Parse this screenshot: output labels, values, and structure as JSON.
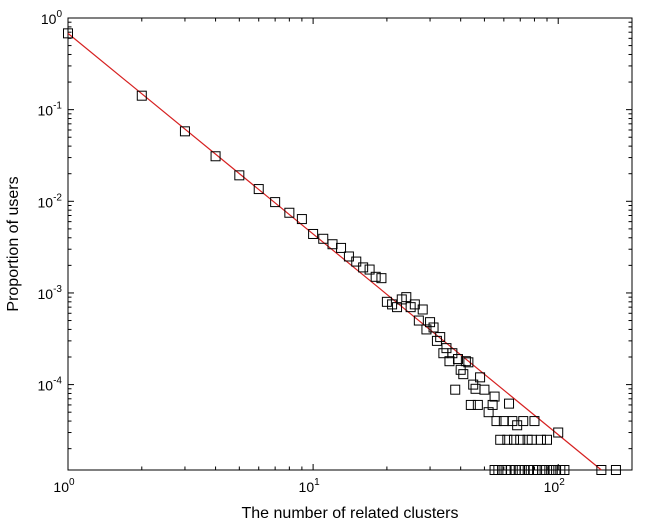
{
  "chart_data": {
    "type": "scatter",
    "xlabel": "The number of related clusters",
    "ylabel": "Proportion of users",
    "xscale": "log",
    "yscale": "log",
    "xlim": [
      1,
      200
    ],
    "ylim": [
      1.17e-05,
      1
    ],
    "grid": false,
    "x_ticks": [
      {
        "value": 1,
        "base": "10",
        "exp": "0"
      },
      {
        "value": 10,
        "base": "10",
        "exp": "1"
      },
      {
        "value": 100,
        "base": "10",
        "exp": "2"
      }
    ],
    "y_ticks": [
      {
        "value": 1,
        "base": "10",
        "exp": "0"
      },
      {
        "value": 0.1,
        "base": "10",
        "exp": "-1"
      },
      {
        "value": 0.01,
        "base": "10",
        "exp": "-2"
      },
      {
        "value": 0.001,
        "base": "10",
        "exp": "-3"
      },
      {
        "value": 0.0001,
        "base": "10",
        "exp": "-4"
      }
    ],
    "series": [
      {
        "marker": "square",
        "color": "#000000",
        "points": [
          [
            1,
            0.68
          ],
          [
            2,
            0.142
          ],
          [
            3,
            0.058
          ],
          [
            4,
            0.031
          ],
          [
            5,
            0.0192
          ],
          [
            6,
            0.0136
          ],
          [
            7,
            0.0098
          ],
          [
            8,
            0.0075
          ],
          [
            9,
            0.0064
          ],
          [
            10,
            0.0044
          ],
          [
            11,
            0.0039
          ],
          [
            12,
            0.0034
          ],
          [
            13,
            0.0031
          ],
          [
            14,
            0.0025
          ],
          [
            15,
            0.0022
          ],
          [
            16,
            0.0019
          ],
          [
            17,
            0.0018
          ],
          [
            18,
            0.0015
          ],
          [
            19,
            0.00145
          ],
          [
            20,
            0.0008
          ],
          [
            21,
            0.00075
          ],
          [
            22,
            0.0007
          ],
          [
            23,
            0.00085
          ],
          [
            24,
            0.0009
          ],
          [
            25,
            0.0007
          ],
          [
            26,
            0.00075
          ],
          [
            27,
            0.0005
          ],
          [
            28,
            0.00066
          ],
          [
            29,
            0.0004
          ],
          [
            30,
            0.00048
          ],
          [
            31,
            0.00042
          ],
          [
            32,
            0.0003
          ],
          [
            33,
            0.00033
          ],
          [
            34,
            0.00022
          ],
          [
            35,
            0.00025
          ],
          [
            36,
            0.00018
          ],
          [
            37,
            0.00022
          ],
          [
            38,
            8.8e-05
          ],
          [
            39,
            0.00019
          ],
          [
            40,
            0.000145
          ],
          [
            41,
            0.00013
          ],
          [
            42,
            0.00018
          ],
          [
            43,
            0.000175
          ],
          [
            44,
            6e-05
          ],
          [
            45,
            0.0001
          ],
          [
            46,
            9e-05
          ],
          [
            47,
            6e-05
          ],
          [
            48,
            0.00012
          ],
          [
            50,
            8.8e-05
          ],
          [
            52,
            5e-05
          ],
          [
            54,
            6e-05
          ],
          [
            55,
            7.4e-05
          ],
          [
            56,
            4e-05
          ],
          [
            58,
            2.5e-05
          ],
          [
            60,
            4e-05
          ],
          [
            62,
            2.5e-05
          ],
          [
            63,
            6.2e-05
          ],
          [
            65,
            4e-05
          ],
          [
            66,
            2.5e-05
          ],
          [
            68,
            3.6e-05
          ],
          [
            70,
            2.5e-05
          ],
          [
            72,
            4e-05
          ],
          [
            75,
            2.5e-05
          ],
          [
            78,
            2.5e-05
          ],
          [
            80,
            4e-05
          ],
          [
            85,
            2.5e-05
          ],
          [
            90,
            2.5e-05
          ],
          [
            100,
            3e-05
          ],
          [
            55,
            1.17e-05
          ],
          [
            57,
            1.17e-05
          ],
          [
            59,
            1.17e-05
          ],
          [
            61,
            1.17e-05
          ],
          [
            64,
            1.17e-05
          ],
          [
            67,
            1.17e-05
          ],
          [
            69,
            1.17e-05
          ],
          [
            71,
            1.17e-05
          ],
          [
            73,
            1.17e-05
          ],
          [
            76,
            1.17e-05
          ],
          [
            79,
            1.17e-05
          ],
          [
            82,
            1.17e-05
          ],
          [
            86,
            1.17e-05
          ],
          [
            88,
            1.17e-05
          ],
          [
            92,
            1.17e-05
          ],
          [
            95,
            1.17e-05
          ],
          [
            98,
            1.17e-05
          ],
          [
            102,
            1.17e-05
          ],
          [
            106,
            1.17e-05
          ],
          [
            150,
            1.17e-05
          ],
          [
            172,
            1.17e-05
          ]
        ]
      },
      {
        "marker": "none",
        "line": "fit",
        "color": "#d62020",
        "points": [
          [
            1,
            0.68
          ],
          [
            150,
            1.17e-05
          ]
        ]
      }
    ]
  }
}
